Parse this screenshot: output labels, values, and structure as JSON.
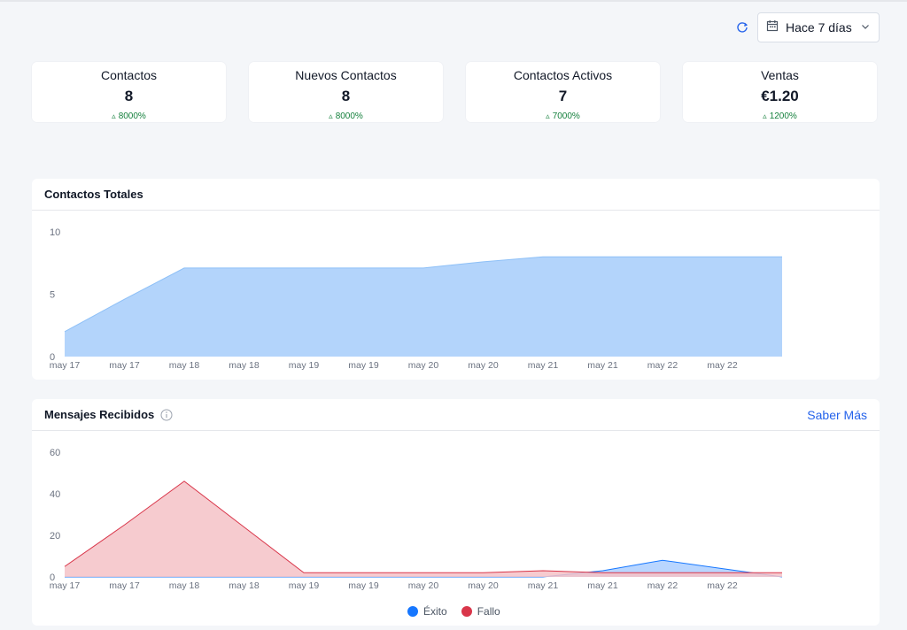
{
  "toolbar": {
    "refresh_icon": "refresh-icon",
    "calendar_icon": "calendar-icon",
    "date_range": "Hace 7 días",
    "dropdown_icon": "chevron-down-icon"
  },
  "stats": [
    {
      "title": "Contactos",
      "value": "8",
      "change": "8000%"
    },
    {
      "title": "Nuevos Contactos",
      "value": "8",
      "change": "8000%"
    },
    {
      "title": "Contactos Activos",
      "value": "7",
      "change": "7000%"
    },
    {
      "title": "Ventas",
      "value": "€1.20",
      "change": "1200%"
    }
  ],
  "colors": {
    "accent": "#2563eb",
    "positive": "#15803d",
    "total_fill": "#b3d4fb",
    "total_line": "#8ec0f7",
    "exito": "#1677ff",
    "fallo": "#d9364a",
    "fallo_fill": "#f4c2c7"
  },
  "panels": {
    "total": {
      "title": "Contactos Totales"
    },
    "mensajes": {
      "title": "Mensajes Recibidos",
      "link": "Saber Más",
      "info_icon": "info-icon"
    }
  },
  "chart_data": [
    {
      "type": "area",
      "title": "Contactos Totales",
      "x": [
        "may 17",
        "may 17",
        "may 18",
        "may 18",
        "may 19",
        "may 19",
        "may 20",
        "may 20",
        "may 21",
        "may 21",
        "may 22",
        "may 22",
        ""
      ],
      "ticks": [
        "may 17",
        "may 17",
        "may 18",
        "may 18",
        "may 19",
        "may 19",
        "may 20",
        "may 20",
        "may 21",
        "may 21",
        "may 22",
        "may 22"
      ],
      "series": [
        {
          "name": "",
          "values": [
            2,
            4.6,
            7.1,
            7.1,
            7.1,
            7.1,
            7.1,
            7.6,
            8,
            8,
            8,
            8,
            8
          ]
        }
      ],
      "ylim": [
        0,
        10
      ],
      "yticks": [
        0,
        5,
        10
      ],
      "grid": false
    },
    {
      "type": "area",
      "title": "Mensajes Recibidos",
      "x": [
        "may 17",
        "may 17",
        "may 18",
        "may 18",
        "may 19",
        "may 19",
        "may 20",
        "may 20",
        "may 21",
        "may 21",
        "may 22",
        "may 22",
        ""
      ],
      "ticks": [
        "may 17",
        "may 17",
        "may 18",
        "may 18",
        "may 19",
        "may 19",
        "may 20",
        "may 20",
        "may 21",
        "may 21",
        "may 22",
        "may 22"
      ],
      "series": [
        {
          "name": "Éxito",
          "values": [
            0,
            0,
            0,
            0,
            0,
            0,
            0,
            0,
            0,
            3,
            8,
            4,
            0
          ]
        },
        {
          "name": "Fallo",
          "values": [
            5,
            25,
            46,
            24,
            2,
            2,
            2,
            2,
            3,
            2,
            2,
            2,
            2
          ]
        }
      ],
      "ylim": [
        0,
        60
      ],
      "yticks": [
        0,
        20,
        40,
        60
      ],
      "legend": "bottom",
      "grid": false
    }
  ]
}
